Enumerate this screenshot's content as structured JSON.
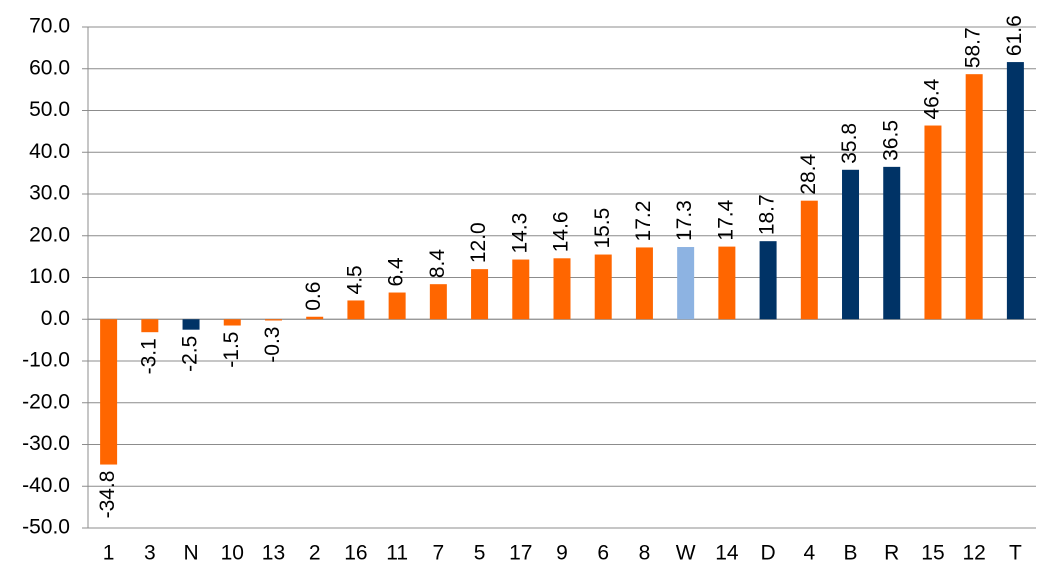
{
  "chart_data": {
    "type": "bar",
    "categories": [
      "1",
      "3",
      "N",
      "10",
      "13",
      "2",
      "16",
      "11",
      "7",
      "5",
      "17",
      "9",
      "6",
      "8",
      "W",
      "14",
      "D",
      "4",
      "B",
      "R",
      "15",
      "12",
      "T"
    ],
    "values": [
      -34.8,
      -3.1,
      -2.5,
      -1.5,
      -0.3,
      0.6,
      4.5,
      6.4,
      8.4,
      12.0,
      14.3,
      14.6,
      15.5,
      17.2,
      17.3,
      17.4,
      18.7,
      28.4,
      35.8,
      36.5,
      46.4,
      58.7,
      61.6
    ],
    "value_labels": [
      "-34.8",
      "-3.1",
      "-2.5",
      "-1.5",
      "-0.3",
      "0.6",
      "4.5",
      "6.4",
      "8.4",
      "12.0",
      "14.3",
      "14.6",
      "15.5",
      "17.2",
      "17.3",
      "17.4",
      "18.7",
      "28.4",
      "35.8",
      "36.5",
      "46.4",
      "58.7",
      "61.6"
    ],
    "colors": [
      "#ff6600",
      "#ff6600",
      "#003366",
      "#ff6600",
      "#ff6600",
      "#ff6600",
      "#ff6600",
      "#ff6600",
      "#ff6600",
      "#ff6600",
      "#ff6600",
      "#ff6600",
      "#ff6600",
      "#ff6600",
      "#8db3e2",
      "#ff6600",
      "#003366",
      "#ff6600",
      "#003366",
      "#003366",
      "#ff6600",
      "#ff6600",
      "#003366"
    ],
    "ylim": [
      -50,
      70
    ],
    "yticks": [
      {
        "value": -50,
        "label": "-50.0"
      },
      {
        "value": -40,
        "label": "-40.0"
      },
      {
        "value": -30,
        "label": "-30.0"
      },
      {
        "value": -20,
        "label": "-20.0"
      },
      {
        "value": -10,
        "label": "-10.0"
      },
      {
        "value": 0,
        "label": "0.0"
      },
      {
        "value": 10,
        "label": "10.0"
      },
      {
        "value": 20,
        "label": "20.0"
      },
      {
        "value": 30,
        "label": "30.0"
      },
      {
        "value": 40,
        "label": "40.0"
      },
      {
        "value": 50,
        "label": "50.0"
      },
      {
        "value": 60,
        "label": "60.0"
      },
      {
        "value": 70,
        "label": "70.0"
      }
    ],
    "grid": true
  }
}
